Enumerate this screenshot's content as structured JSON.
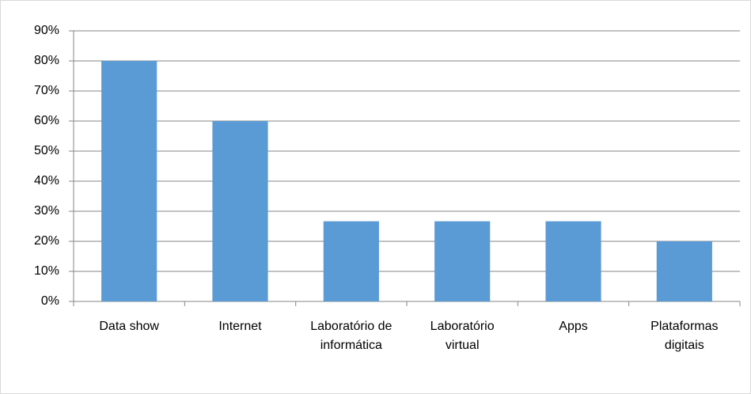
{
  "chart_data": {
    "type": "bar",
    "categories": [
      "Data show",
      "Internet",
      "Laboratório de informática",
      "Laboratório virtual",
      "Apps",
      "Plataformas digitais"
    ],
    "values": [
      80,
      60,
      26.67,
      26.67,
      26.67,
      20
    ],
    "color": "#5b9bd5",
    "ylim": [
      0,
      90
    ],
    "yticks": [
      {
        "value": 0,
        "label": "0%"
      },
      {
        "value": 10,
        "label": "10%"
      },
      {
        "value": 20,
        "label": "20%"
      },
      {
        "value": 30,
        "label": "30%"
      },
      {
        "value": 40,
        "label": "40%"
      },
      {
        "value": 50,
        "label": "50%"
      },
      {
        "value": 60,
        "label": "60%"
      },
      {
        "value": 70,
        "label": "70%"
      },
      {
        "value": 80,
        "label": "80%"
      },
      {
        "value": 90,
        "label": "90%"
      }
    ],
    "grid": true
  }
}
